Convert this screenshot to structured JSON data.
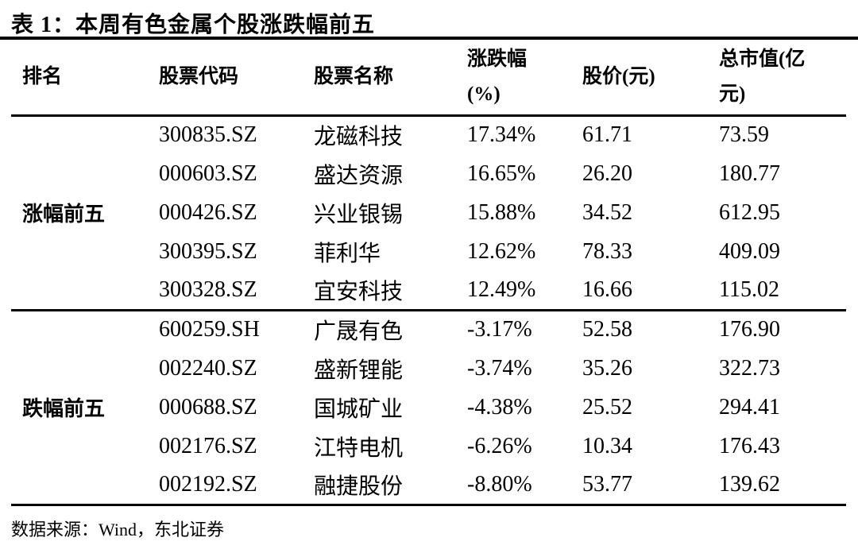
{
  "title": "表 1：本周有色金属个股涨跌幅前五",
  "table": {
    "headers": {
      "rank": "排名",
      "code": "股票代码",
      "name": "股票名称",
      "change": "涨跌幅\n(%)",
      "price": "股价(元)",
      "mcap": "总市值(亿\n元)"
    },
    "groups": [
      {
        "label": "涨幅前五",
        "rows": [
          {
            "code": "300835.SZ",
            "name": "龙磁科技",
            "change": "17.34%",
            "price": "61.71",
            "mcap": "73.59"
          },
          {
            "code": "000603.SZ",
            "name": "盛达资源",
            "change": "16.65%",
            "price": "26.20",
            "mcap": "180.77"
          },
          {
            "code": "000426.SZ",
            "name": "兴业银锡",
            "change": "15.88%",
            "price": "34.52",
            "mcap": "612.95"
          },
          {
            "code": "300395.SZ",
            "name": "菲利华",
            "change": "12.62%",
            "price": "78.33",
            "mcap": "409.09"
          },
          {
            "code": "300328.SZ",
            "name": "宜安科技",
            "change": "12.49%",
            "price": "16.66",
            "mcap": "115.02"
          }
        ]
      },
      {
        "label": "跌幅前五",
        "rows": [
          {
            "code": "600259.SH",
            "name": "广晟有色",
            "change": "-3.17%",
            "price": "52.58",
            "mcap": "176.90"
          },
          {
            "code": "002240.SZ",
            "name": "盛新锂能",
            "change": "-3.74%",
            "price": "35.26",
            "mcap": "322.73"
          },
          {
            "code": "000688.SZ",
            "name": "国城矿业",
            "change": "-4.38%",
            "price": "25.52",
            "mcap": "294.41"
          },
          {
            "code": "002176.SZ",
            "name": "江特电机",
            "change": "-6.26%",
            "price": "10.34",
            "mcap": "176.43"
          },
          {
            "code": "002192.SZ",
            "name": "融捷股份",
            "change": "-8.80%",
            "price": "53.77",
            "mcap": "139.62"
          }
        ]
      }
    ]
  },
  "footer": {
    "source": "数据来源：Wind，东北证券"
  },
  "colors": {
    "text": "#000000",
    "rule": "#000000",
    "background": "#ffffff"
  }
}
